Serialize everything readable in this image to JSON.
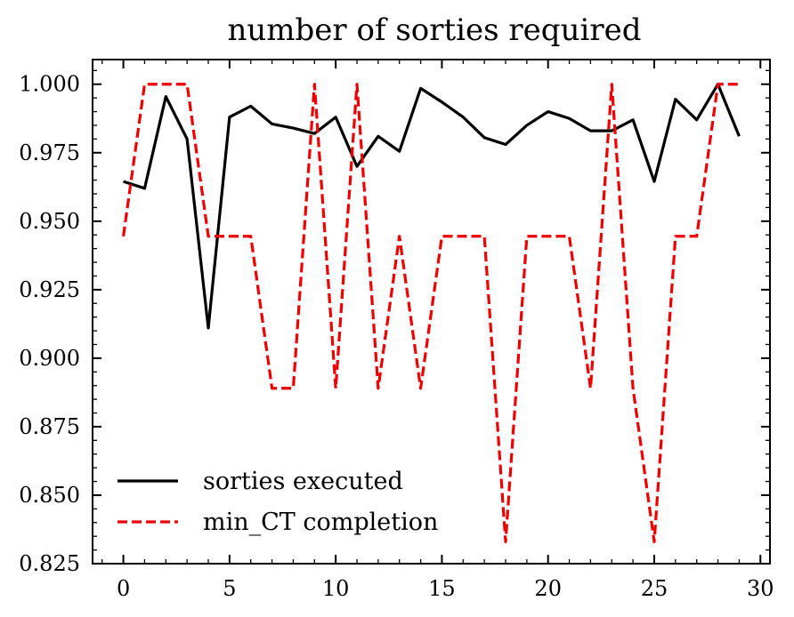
{
  "chart_data": {
    "type": "line",
    "title": "number of sorties required",
    "xlabel": "",
    "ylabel": "",
    "xlim": [
      -1.45,
      30.45
    ],
    "ylim": [
      0.825,
      1.009
    ],
    "x_ticks": [
      0,
      5,
      10,
      15,
      20,
      25,
      30
    ],
    "x_tick_labels": [
      "0",
      "5",
      "10",
      "15",
      "20",
      "25",
      "30"
    ],
    "y_ticks": [
      0.825,
      0.85,
      0.875,
      0.9,
      0.925,
      0.95,
      0.975,
      1.0
    ],
    "y_tick_labels": [
      "0.825",
      "0.850",
      "0.875",
      "0.900",
      "0.925",
      "0.950",
      "0.975",
      "1.000"
    ],
    "grid": false,
    "legend_position": "lower-left",
    "x": [
      0,
      1,
      2,
      3,
      4,
      5,
      6,
      7,
      8,
      9,
      10,
      11,
      12,
      13,
      14,
      15,
      16,
      17,
      18,
      19,
      20,
      21,
      22,
      23,
      24,
      25,
      26,
      27,
      28,
      29
    ],
    "series": [
      {
        "name": "sorties executed",
        "color": "#000000",
        "style": "solid",
        "values": [
          0.9645,
          0.962,
          0.9955,
          0.98,
          0.911,
          0.988,
          0.992,
          0.9855,
          0.984,
          0.982,
          0.988,
          0.97,
          0.981,
          0.9755,
          0.9985,
          0.9935,
          0.988,
          0.9805,
          0.978,
          0.985,
          0.99,
          0.9875,
          0.983,
          0.983,
          0.987,
          0.9645,
          0.9945,
          0.987,
          1.0,
          0.981
        ]
      },
      {
        "name": "min_CT completion",
        "color": "#ee0000",
        "style": "dashed",
        "values": [
          0.9445,
          1.0,
          1.0,
          1.0,
          0.9445,
          0.9445,
          0.9445,
          0.889,
          0.889,
          1.0,
          0.889,
          1.0,
          0.889,
          0.9445,
          0.889,
          0.9445,
          0.9445,
          0.9445,
          0.833,
          0.9445,
          0.9445,
          0.9445,
          0.889,
          1.0,
          0.889,
          0.833,
          0.9445,
          0.9445,
          1.0,
          1.0
        ]
      }
    ]
  }
}
